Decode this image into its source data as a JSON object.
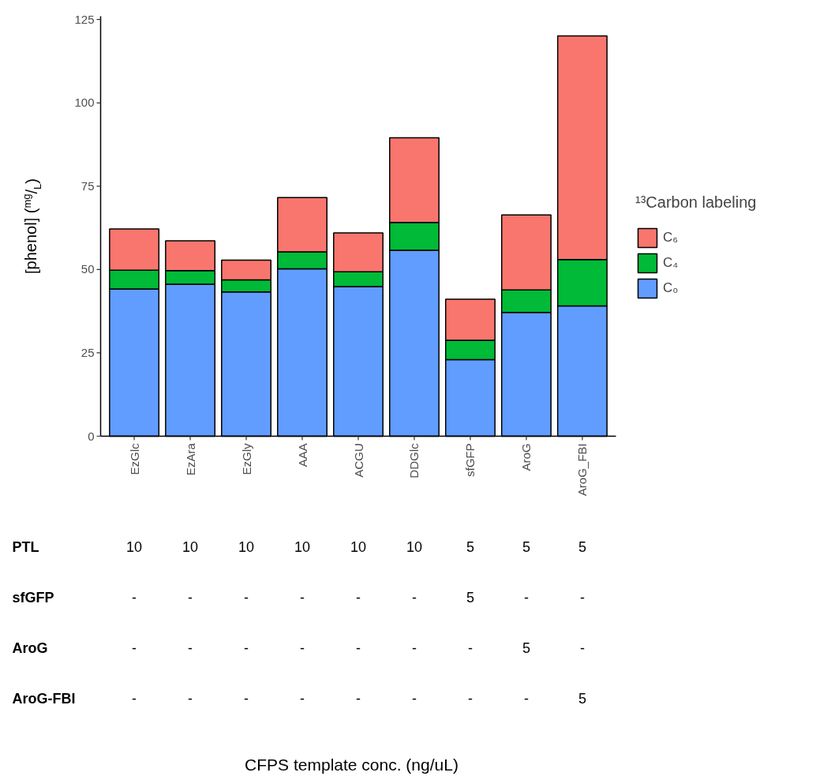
{
  "chart_data": {
    "type": "bar",
    "stacked": true,
    "ylabel": "[phenol] ($^{mg}$/$_{L}$)",
    "legend_title": "¹³Carbon labeling",
    "categories": [
      "EzGlc",
      "EzAra",
      "EzGly",
      "AAA",
      "ACGU",
      "DDGlc",
      "sfGFP",
      "AroG",
      "AroG_FBI"
    ],
    "series": [
      {
        "name": "C₀",
        "color": "#619cff",
        "values": [
          44.2,
          45.6,
          43.3,
          50.2,
          44.9,
          55.8,
          23.0,
          37.1,
          39.1
        ]
      },
      {
        "name": "C₄",
        "color": "#00ba38",
        "values": [
          5.6,
          4.1,
          3.6,
          5.1,
          4.4,
          8.3,
          5.8,
          6.8,
          13.9
        ]
      },
      {
        "name": "C₆",
        "color": "#f8766d",
        "values": [
          12.4,
          8.9,
          5.9,
          16.3,
          11.7,
          25.4,
          12.3,
          22.5,
          67.1
        ]
      }
    ],
    "ylim": [
      0,
      126
    ],
    "yticks": [
      0,
      25,
      50,
      75,
      100,
      125
    ],
    "grid": false,
    "legend": "right",
    "annotations": [
      "PTL",
      "10",
      "10",
      "10",
      "10",
      "10",
      "10",
      "5",
      "5",
      "5",
      "sfGFP",
      "-",
      "-",
      "-",
      "-",
      "-",
      "-",
      "5",
      "-",
      "-",
      "AroG",
      "-",
      "-",
      "-",
      "-",
      "-",
      "-",
      "-",
      "5",
      "-",
      "AroG-FBI",
      "-",
      "-",
      "-",
      "-",
      "-",
      "-",
      "-",
      "-",
      "5",
      "CFPS template conc. (ng/uL)"
    ]
  }
}
